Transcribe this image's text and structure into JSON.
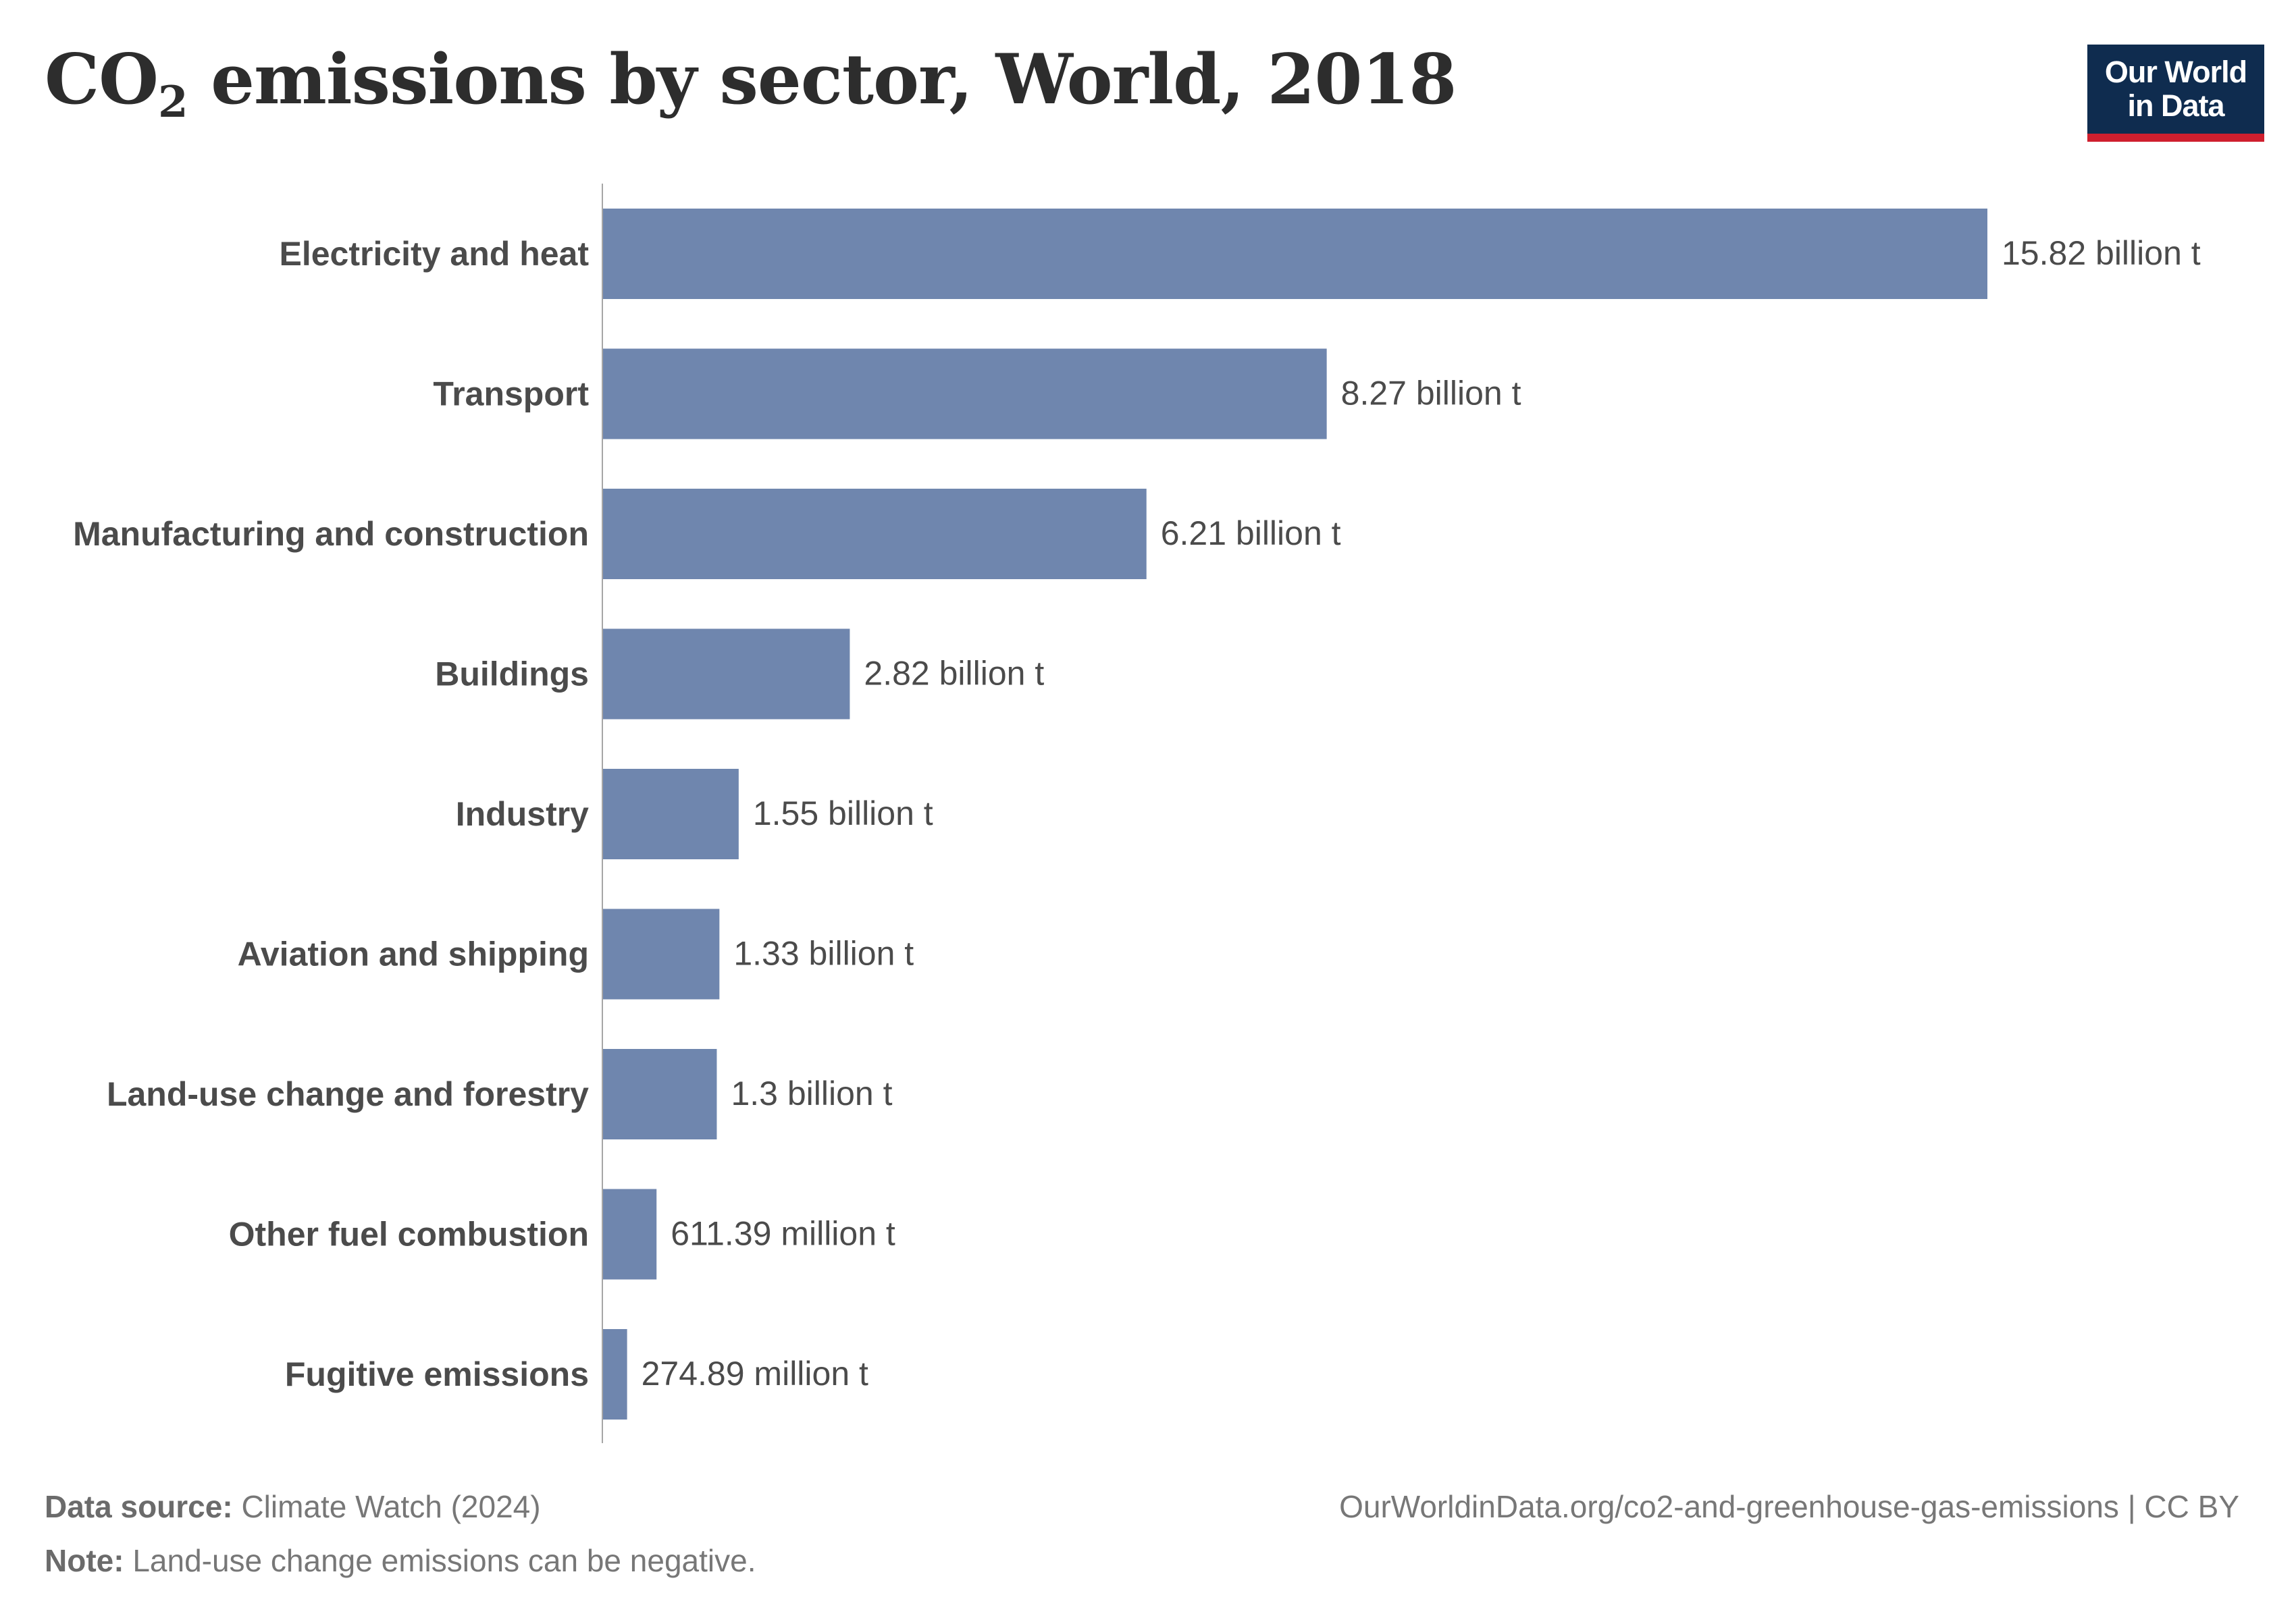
{
  "header": {
    "title_main": "CO",
    "title_subscript": "2",
    "title_rest": " emissions by sector, World, 2018",
    "logo_text": "Our World\nin Data"
  },
  "colors": {
    "bar": "#6f86ae",
    "axis": "#a6a6a6",
    "logo_bg": "#0f2c4f",
    "logo_accent": "#cf1f2e"
  },
  "chart_data": {
    "type": "bar",
    "orientation": "horizontal",
    "title": "CO₂ emissions by sector, World, 2018",
    "unit": "t",
    "categories": [
      "Electricity and heat",
      "Transport",
      "Manufacturing and construction",
      "Buildings",
      "Industry",
      "Aviation and shipping",
      "Land-use change and forestry",
      "Other fuel combustion",
      "Fugitive emissions"
    ],
    "values": [
      15820000000,
      8270000000,
      6210000000,
      2820000000,
      1550000000,
      1330000000,
      1300000000,
      611390000,
      274890000
    ],
    "value_labels": [
      "15.82 billion t",
      "8.27 billion t",
      "6.21 billion t",
      "2.82 billion t",
      "1.55 billion t",
      "1.33 billion t",
      "1.3 billion t",
      "611.39 million t",
      "274.89 million t"
    ],
    "xlim": [
      0,
      15820000000
    ]
  },
  "footer": {
    "source_label": "Data source:",
    "source_text": "Climate Watch (2024)",
    "note_label": "Note:",
    "note_text": "Land-use change emissions can be negative.",
    "url_text": "OurWorldinData.org/co2-and-greenhouse-gas-emissions | CC BY"
  }
}
